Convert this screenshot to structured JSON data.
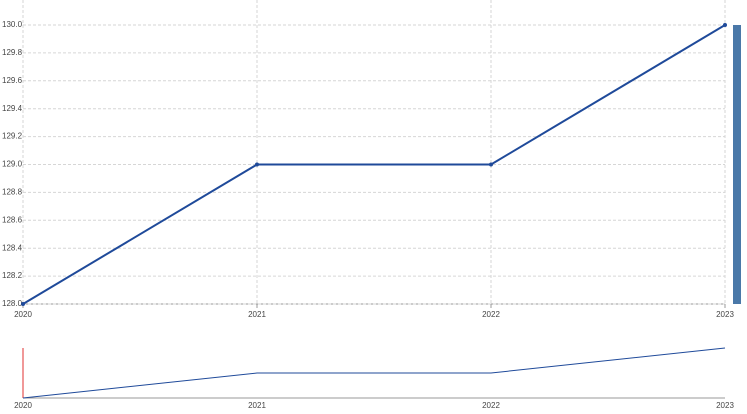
{
  "chart_data": {
    "type": "line",
    "x": [
      2020,
      2021,
      2022,
      2023
    ],
    "series": [
      {
        "color": "#1f4a9a",
        "values": [
          128,
          129,
          129,
          130
        ]
      }
    ],
    "xlim": [
      2020,
      2023
    ],
    "xticks": [
      2020,
      2021,
      2022,
      2023
    ],
    "ylim": [
      128,
      130
    ],
    "yticks": [
      {
        "value": 128,
        "label": "128.0"
      },
      128.2,
      128.4,
      128.6,
      128.8,
      {
        "value": 129,
        "label": "129.0"
      },
      129.2,
      129.4,
      129.6,
      129.8,
      {
        "value": 130,
        "label": "130.0"
      }
    ],
    "grid": true
  }
}
